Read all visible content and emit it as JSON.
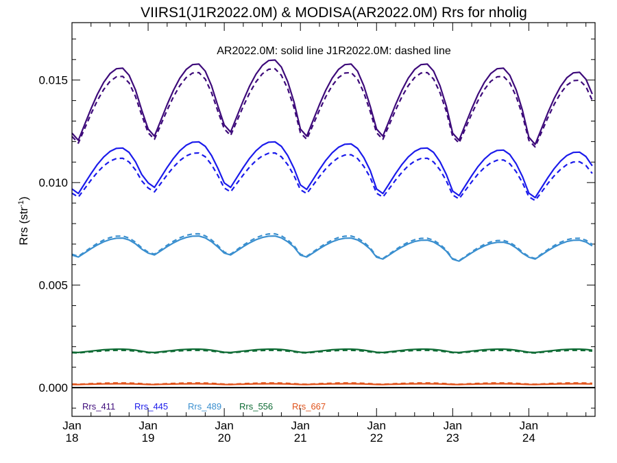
{
  "chart_data": {
    "type": "line",
    "title": "VIIRS1(J1R2022.0M) & MODISA(AR2022.0M)  Rrs for nholig",
    "annotation": "AR2022.0M: solid line   J1R2022.0M: dashed line",
    "ylabel": "Rrs (str",
    "ylabel_sup": "-1",
    "ylabel_close": ")",
    "xlim": [
      2018.0,
      2024.87
    ],
    "ylim": [
      -0.0014,
      0.0178
    ],
    "yticks": [
      {
        "value": 0.0,
        "label": "0.000"
      },
      {
        "value": 0.005,
        "label": "0.005"
      },
      {
        "value": 0.01,
        "label": "0.010"
      },
      {
        "value": 0.015,
        "label": "0.015"
      }
    ],
    "xticks": [
      {
        "value": 2018,
        "month": "Jan",
        "year": "18"
      },
      {
        "value": 2019,
        "month": "Jan",
        "year": "19"
      },
      {
        "value": 2020,
        "month": "Jan",
        "year": "20"
      },
      {
        "value": 2021,
        "month": "Jan",
        "year": "21"
      },
      {
        "value": 2022,
        "month": "Jan",
        "year": "22"
      },
      {
        "value": 2023,
        "month": "Jan",
        "year": "23"
      },
      {
        "value": 2024,
        "month": "Jan",
        "year": "24"
      }
    ],
    "zero_line": true,
    "grid": false,
    "legend_position": "bottom-left",
    "series": [
      {
        "name": "Rrs_411",
        "color": "#3d0a7a",
        "min": 0.0118,
        "max": 0.0156,
        "peak": 0.64,
        "trough": 0.05,
        "solid_offsets": [
          0.0,
          0.0002,
          0.0004,
          0.0002,
          0.0002,
          0.0,
          -0.0002
        ],
        "dashed_delta": -0.0004
      },
      {
        "name": "Rrs_445",
        "color": "#1a1aeb",
        "min": 0.0093,
        "max": 0.0117,
        "peak": 0.64,
        "trough": 0.05,
        "solid_offsets": [
          0.0,
          0.0003,
          0.0003,
          0.0002,
          0.0,
          -0.0001,
          -0.0002
        ],
        "dashed_delta": -0.0005
      },
      {
        "name": "Rrs_489",
        "color": "#3a8fcf",
        "min": 0.0063,
        "max": 0.0073,
        "peak": 0.64,
        "trough": 0.05,
        "solid_offsets": [
          0.0,
          0.0001,
          0.0001,
          0.0,
          -0.0001,
          -0.0002,
          -0.0001
        ],
        "dashed_delta": 0.0001
      },
      {
        "name": "Rrs_556",
        "color": "#0e6b34",
        "min": 0.0017,
        "max": 0.00188,
        "peak": 0.64,
        "trough": 0.05,
        "solid_offsets": [
          0,
          0,
          0,
          0,
          0,
          0,
          0
        ],
        "dashed_delta": -6e-05
      },
      {
        "name": "Rrs_667",
        "color": "#e0521a",
        "min": 0.00015,
        "max": 0.00019,
        "peak": 0.64,
        "trough": 0.05,
        "solid_offsets": [
          0,
          0,
          0,
          0,
          0,
          0,
          0
        ],
        "dashed_delta": 4e-05
      }
    ]
  }
}
